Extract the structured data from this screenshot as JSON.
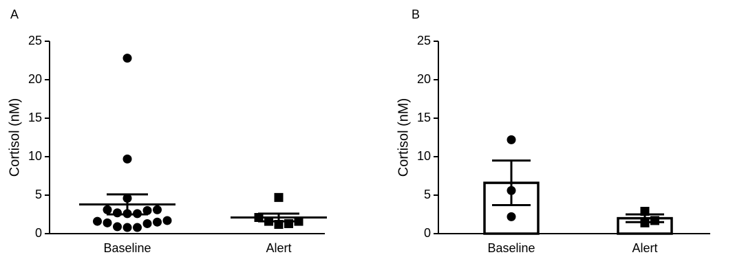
{
  "charts": [
    {
      "type": "dot",
      "panel": "A",
      "ylabel": "Cortisol (nM)",
      "categories": [
        "Baseline",
        "Alert"
      ],
      "ylim": [
        0,
        25
      ],
      "yticks": [
        0,
        5,
        10,
        15,
        20,
        25
      ],
      "markers": [
        "circle",
        "square"
      ],
      "color": "#000000",
      "points": [
        [
          22.8,
          9.7,
          4.6,
          3.1,
          3.1,
          3.0,
          2.7,
          2.6,
          2.6,
          1.7,
          1.6,
          1.5,
          1.4,
          1.3,
          0.9,
          0.8,
          0.8
        ],
        [
          4.7,
          2.1,
          1.6,
          1.6,
          1.3,
          1.2
        ]
      ],
      "means": [
        3.8,
        2.1
      ],
      "sems": [
        1.3,
        0.5
      ]
    },
    {
      "type": "bar",
      "panel": "B",
      "ylabel": "Cortisol (nM)",
      "categories": [
        "Baseline",
        "Alert"
      ],
      "ylim": [
        0,
        25
      ],
      "yticks": [
        0,
        5,
        10,
        15,
        20,
        25
      ],
      "markers": [
        "circle",
        "square"
      ],
      "color": "#000000",
      "points": [
        [
          12.2,
          5.6,
          2.2
        ],
        [
          2.9,
          1.7,
          1.4
        ]
      ],
      "means": [
        6.6,
        2.0
      ],
      "sems": [
        2.9,
        0.5
      ]
    }
  ]
}
